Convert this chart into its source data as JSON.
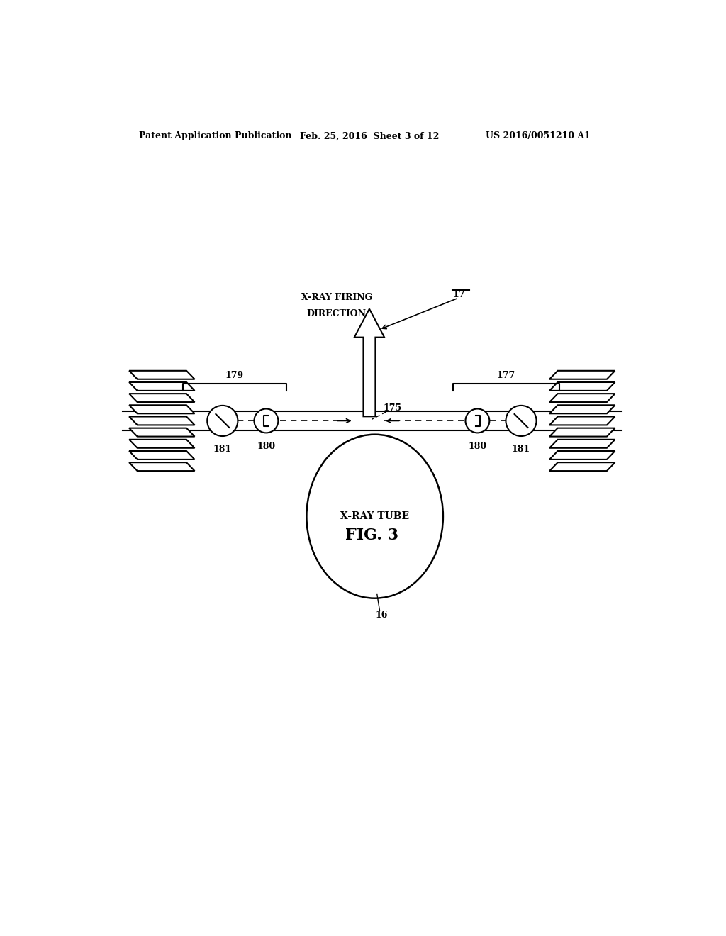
{
  "bg_color": "#ffffff",
  "line_color": "#000000",
  "header_left": "Patent Application Publication",
  "header_mid": "Feb. 25, 2016  Sheet 3 of 12",
  "header_right": "US 2016/0051210 A1",
  "fig_label": "FIG. 3",
  "title_line1": "X-RAY FIRING",
  "title_line2": "DIRECTION",
  "label_17": "17",
  "label_175": "175",
  "label_179": "179",
  "label_177": "177",
  "label_180_left": "180",
  "label_180_right": "180",
  "label_181_left": "181",
  "label_181_right": "181",
  "label_16": "16",
  "xray_tube_label": "X-RAY TUBE"
}
